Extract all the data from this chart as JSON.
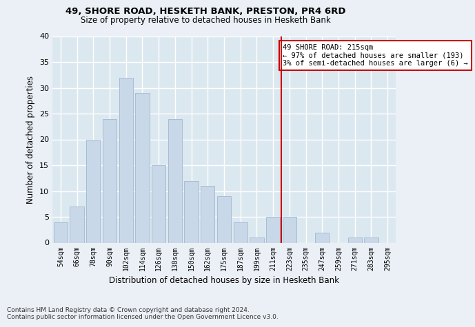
{
  "title1": "49, SHORE ROAD, HESKETH BANK, PRESTON, PR4 6RD",
  "title2": "Size of property relative to detached houses in Hesketh Bank",
  "xlabel": "Distribution of detached houses by size in Hesketh Bank",
  "ylabel": "Number of detached properties",
  "categories": [
    "54sqm",
    "66sqm",
    "78sqm",
    "90sqm",
    "102sqm",
    "114sqm",
    "126sqm",
    "138sqm",
    "150sqm",
    "162sqm",
    "175sqm",
    "187sqm",
    "199sqm",
    "211sqm",
    "223sqm",
    "235sqm",
    "247sqm",
    "259sqm",
    "271sqm",
    "283sqm",
    "295sqm"
  ],
  "values": [
    4,
    7,
    20,
    24,
    32,
    29,
    15,
    24,
    12,
    11,
    9,
    4,
    1,
    5,
    5,
    0,
    2,
    0,
    1,
    1,
    0
  ],
  "bar_color": "#c8d8e8",
  "bar_edgecolor": "#a0b8d0",
  "vline_x": 13.5,
  "vline_color": "#cc0000",
  "annotation_text": "49 SHORE ROAD: 215sqm\n← 97% of detached houses are smaller (193)\n3% of semi-detached houses are larger (6) →",
  "annotation_box_edgecolor": "#cc0000",
  "annotation_box_facecolor": "#ffffff",
  "ylim": [
    0,
    40
  ],
  "yticks": [
    0,
    5,
    10,
    15,
    20,
    25,
    30,
    35,
    40
  ],
  "bg_color": "#dce8f0",
  "grid_color": "#ffffff",
  "fig_bg_color": "#eaf0f6",
  "footer1": "Contains HM Land Registry data © Crown copyright and database right 2024.",
  "footer2": "Contains public sector information licensed under the Open Government Licence v3.0."
}
